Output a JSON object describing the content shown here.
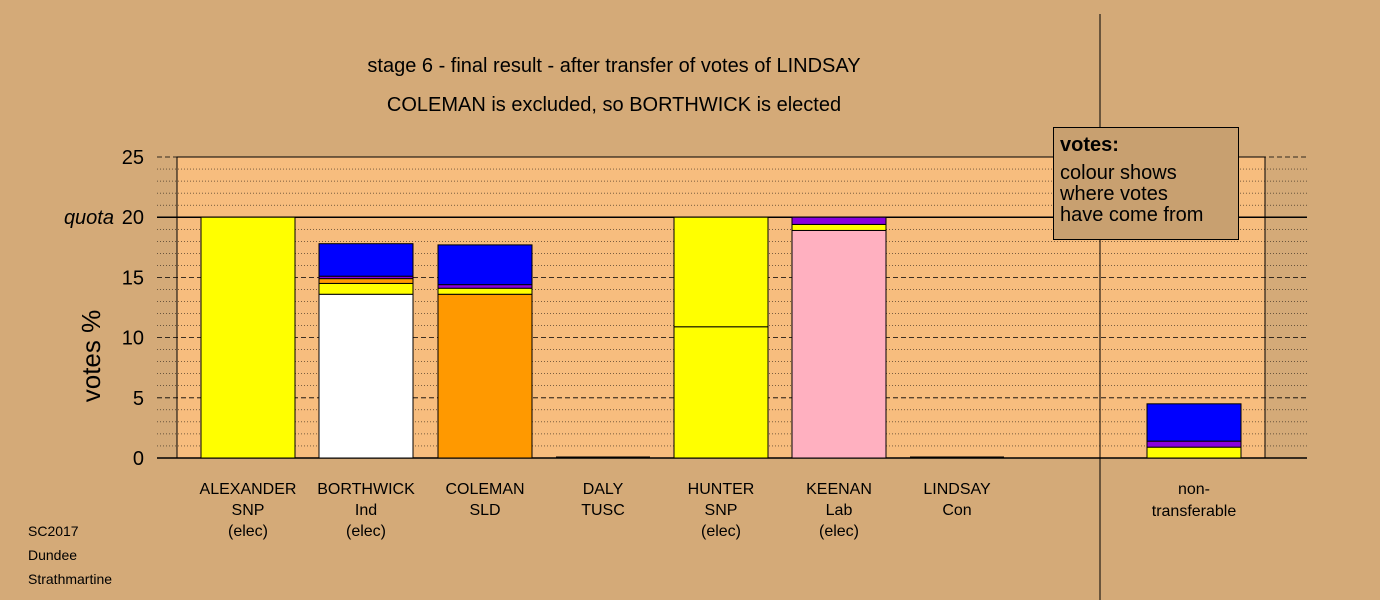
{
  "chart_data": {
    "type": "bar",
    "stacked": true,
    "title": "stage 6 - final result - after transfer of votes of LINDSAY",
    "subtitle": "COLEMAN is excluded, so BORTHWICK is elected",
    "ylabel": "votes %",
    "ylim": [
      0,
      25
    ],
    "yticks": [
      0,
      5,
      10,
      15,
      20,
      25
    ],
    "quota": {
      "value": 20,
      "label": "quota"
    },
    "categories": [
      {
        "name": "ALEXANDER",
        "party": "SNP",
        "status": "(elec)"
      },
      {
        "name": "BORTHWICK",
        "party": "Ind",
        "status": "(elec)"
      },
      {
        "name": "COLEMAN",
        "party": "SLD",
        "status": ""
      },
      {
        "name": "DALY",
        "party": "TUSC",
        "status": ""
      },
      {
        "name": "HUNTER",
        "party": "SNP",
        "status": "(elec)"
      },
      {
        "name": "KEENAN",
        "party": "Lab",
        "status": "(elec)"
      },
      {
        "name": "LINDSAY",
        "party": "Con",
        "status": ""
      }
    ],
    "nontransferable_label": [
      "non-",
      "transferable"
    ],
    "stacks": [
      [
        {
          "value": 20.0,
          "color": "#ffff00"
        }
      ],
      [
        {
          "value": 13.6,
          "color": "#ffffff"
        },
        {
          "value": 0.9,
          "color": "#ffff00"
        },
        {
          "value": 0.4,
          "color": "#ff9900"
        },
        {
          "value": 0.2,
          "color": "#8800dd"
        },
        {
          "value": 2.7,
          "color": "#0000ff"
        }
      ],
      [
        {
          "value": 13.6,
          "color": "#ff9900"
        },
        {
          "value": 0.5,
          "color": "#ffff00"
        },
        {
          "value": 0.3,
          "color": "#8800dd"
        },
        {
          "value": 3.3,
          "color": "#0000ff"
        }
      ],
      [],
      [
        {
          "value": 10.9,
          "color": "#ffff00"
        },
        {
          "value": 9.1,
          "color": "#ffff00"
        }
      ],
      [
        {
          "value": 18.9,
          "color": "#ffb0c0"
        },
        {
          "value": 0.5,
          "color": "#ffff00"
        },
        {
          "value": 0.6,
          "color": "#8800dd"
        }
      ],
      [],
      [
        {
          "value": 0.9,
          "color": "#ffff00"
        },
        {
          "value": 0.5,
          "color": "#8800dd"
        },
        {
          "value": 3.1,
          "color": "#0000ff"
        }
      ]
    ],
    "legend": {
      "title": "votes:",
      "lines": [
        "colour shows",
        "where votes",
        "have come from"
      ],
      "position": "top-right"
    }
  },
  "footnote": [
    "SC2017",
    "Dundee",
    "Strathmartine"
  ]
}
